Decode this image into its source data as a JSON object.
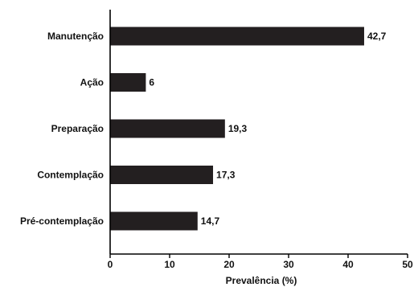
{
  "chart_data": {
    "type": "bar",
    "orientation": "horizontal",
    "categories": [
      "Manutenção",
      "Ação",
      "Preparação",
      "Contemplação",
      "Pré-contemplação"
    ],
    "values": [
      42.7,
      6,
      19.3,
      17.3,
      14.7
    ],
    "value_labels": [
      "42,7",
      "6",
      "19,3",
      "17,3",
      "14,7"
    ],
    "xlabel": "Prevalência (%)",
    "ylabel": "",
    "xlim": [
      0,
      50
    ],
    "xticks": [
      0,
      10,
      20,
      30,
      40,
      50
    ],
    "xtick_labels": [
      "0",
      "10",
      "20",
      "30",
      "40",
      "50"
    ],
    "grid": false,
    "bar_color": "#231f20",
    "axis_color": "#000000"
  }
}
